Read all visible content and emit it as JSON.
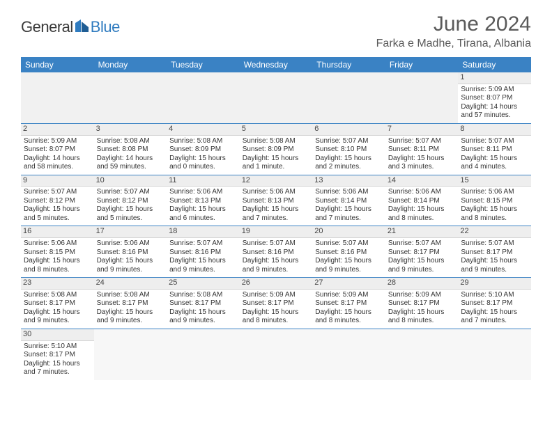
{
  "brand": {
    "part1": "General",
    "part2": "Blue"
  },
  "title": "June 2024",
  "location": "Farka e Madhe, Tirana, Albania",
  "colors": {
    "header_bg": "#3a82c4",
    "header_text": "#ffffff",
    "rule": "#3a82c4",
    "daynum_bg": "#eeeeee",
    "text": "#333333",
    "title_text": "#5a5a5a"
  },
  "day_names": [
    "Sunday",
    "Monday",
    "Tuesday",
    "Wednesday",
    "Thursday",
    "Friday",
    "Saturday"
  ],
  "weeks": [
    [
      null,
      null,
      null,
      null,
      null,
      null,
      {
        "n": "1",
        "sr": "5:09 AM",
        "ss": "8:07 PM",
        "dl": "14 hours and 57 minutes."
      }
    ],
    [
      {
        "n": "2",
        "sr": "5:09 AM",
        "ss": "8:07 PM",
        "dl": "14 hours and 58 minutes."
      },
      {
        "n": "3",
        "sr": "5:08 AM",
        "ss": "8:08 PM",
        "dl": "14 hours and 59 minutes."
      },
      {
        "n": "4",
        "sr": "5:08 AM",
        "ss": "8:09 PM",
        "dl": "15 hours and 0 minutes."
      },
      {
        "n": "5",
        "sr": "5:08 AM",
        "ss": "8:09 PM",
        "dl": "15 hours and 1 minute."
      },
      {
        "n": "6",
        "sr": "5:07 AM",
        "ss": "8:10 PM",
        "dl": "15 hours and 2 minutes."
      },
      {
        "n": "7",
        "sr": "5:07 AM",
        "ss": "8:11 PM",
        "dl": "15 hours and 3 minutes."
      },
      {
        "n": "8",
        "sr": "5:07 AM",
        "ss": "8:11 PM",
        "dl": "15 hours and 4 minutes."
      }
    ],
    [
      {
        "n": "9",
        "sr": "5:07 AM",
        "ss": "8:12 PM",
        "dl": "15 hours and 5 minutes."
      },
      {
        "n": "10",
        "sr": "5:07 AM",
        "ss": "8:12 PM",
        "dl": "15 hours and 5 minutes."
      },
      {
        "n": "11",
        "sr": "5:06 AM",
        "ss": "8:13 PM",
        "dl": "15 hours and 6 minutes."
      },
      {
        "n": "12",
        "sr": "5:06 AM",
        "ss": "8:13 PM",
        "dl": "15 hours and 7 minutes."
      },
      {
        "n": "13",
        "sr": "5:06 AM",
        "ss": "8:14 PM",
        "dl": "15 hours and 7 minutes."
      },
      {
        "n": "14",
        "sr": "5:06 AM",
        "ss": "8:14 PM",
        "dl": "15 hours and 8 minutes."
      },
      {
        "n": "15",
        "sr": "5:06 AM",
        "ss": "8:15 PM",
        "dl": "15 hours and 8 minutes."
      }
    ],
    [
      {
        "n": "16",
        "sr": "5:06 AM",
        "ss": "8:15 PM",
        "dl": "15 hours and 8 minutes."
      },
      {
        "n": "17",
        "sr": "5:06 AM",
        "ss": "8:16 PM",
        "dl": "15 hours and 9 minutes."
      },
      {
        "n": "18",
        "sr": "5:07 AM",
        "ss": "8:16 PM",
        "dl": "15 hours and 9 minutes."
      },
      {
        "n": "19",
        "sr": "5:07 AM",
        "ss": "8:16 PM",
        "dl": "15 hours and 9 minutes."
      },
      {
        "n": "20",
        "sr": "5:07 AM",
        "ss": "8:16 PM",
        "dl": "15 hours and 9 minutes."
      },
      {
        "n": "21",
        "sr": "5:07 AM",
        "ss": "8:17 PM",
        "dl": "15 hours and 9 minutes."
      },
      {
        "n": "22",
        "sr": "5:07 AM",
        "ss": "8:17 PM",
        "dl": "15 hours and 9 minutes."
      }
    ],
    [
      {
        "n": "23",
        "sr": "5:08 AM",
        "ss": "8:17 PM",
        "dl": "15 hours and 9 minutes."
      },
      {
        "n": "24",
        "sr": "5:08 AM",
        "ss": "8:17 PM",
        "dl": "15 hours and 9 minutes."
      },
      {
        "n": "25",
        "sr": "5:08 AM",
        "ss": "8:17 PM",
        "dl": "15 hours and 9 minutes."
      },
      {
        "n": "26",
        "sr": "5:09 AM",
        "ss": "8:17 PM",
        "dl": "15 hours and 8 minutes."
      },
      {
        "n": "27",
        "sr": "5:09 AM",
        "ss": "8:17 PM",
        "dl": "15 hours and 8 minutes."
      },
      {
        "n": "28",
        "sr": "5:09 AM",
        "ss": "8:17 PM",
        "dl": "15 hours and 8 minutes."
      },
      {
        "n": "29",
        "sr": "5:10 AM",
        "ss": "8:17 PM",
        "dl": "15 hours and 7 minutes."
      }
    ],
    [
      {
        "n": "30",
        "sr": "5:10 AM",
        "ss": "8:17 PM",
        "dl": "15 hours and 7 minutes."
      },
      null,
      null,
      null,
      null,
      null,
      null
    ]
  ],
  "labels": {
    "sunrise": "Sunrise:",
    "sunset": "Sunset:",
    "daylight": "Daylight:"
  }
}
